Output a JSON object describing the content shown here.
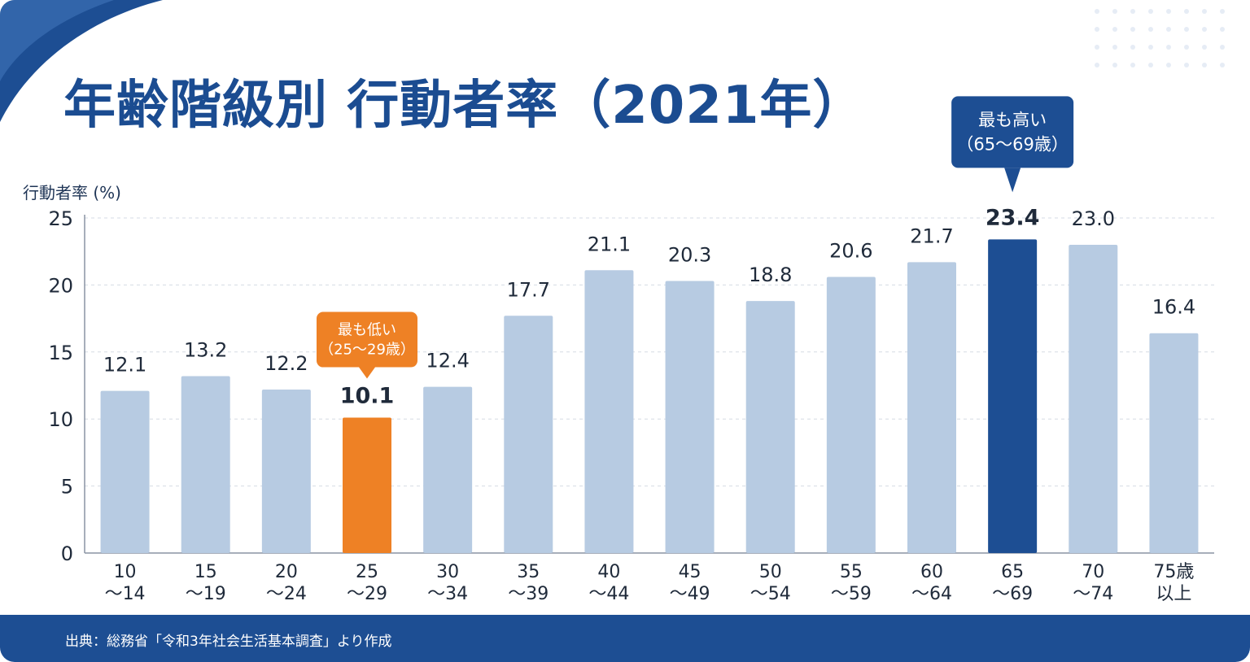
{
  "title": "年齢階級別 行動者率（2021年）",
  "source": "出典：総務省「令和3年社会生活基本調査」より作成",
  "colors": {
    "bar": "#b7cbe2",
    "lowest": "#ee8125",
    "highest": "#1d4e93",
    "title": "#1b4c91",
    "footer": "#1d4e93"
  },
  "chart_data": {
    "type": "bar",
    "ylabel": "行動者率 (%)",
    "ylim": [
      0,
      25
    ],
    "yticks": [
      "0",
      "5",
      "10",
      "15",
      "20",
      "25"
    ],
    "grid": true,
    "categories": [
      [
        "10",
        "～14"
      ],
      [
        "15",
        "～19"
      ],
      [
        "20",
        "～24"
      ],
      [
        "25",
        "～29"
      ],
      [
        "30",
        "～34"
      ],
      [
        "35",
        "～39"
      ],
      [
        "40",
        "～44"
      ],
      [
        "45",
        "～49"
      ],
      [
        "50",
        "～54"
      ],
      [
        "55",
        "～59"
      ],
      [
        "60",
        "～64"
      ],
      [
        "65",
        "～69"
      ],
      [
        "70",
        "～74"
      ],
      [
        "75歳",
        "以上"
      ]
    ],
    "values": [
      12.1,
      13.2,
      12.2,
      10.1,
      12.4,
      17.7,
      21.1,
      20.3,
      18.8,
      20.6,
      21.7,
      23.4,
      23.0,
      16.4
    ],
    "value_labels": [
      "12.1",
      "13.2",
      "12.2",
      "10.1",
      "12.4",
      "17.7",
      "21.1",
      "20.3",
      "18.8",
      "20.6",
      "21.7",
      "23.4",
      "23.0",
      "16.4"
    ],
    "annotations": [
      {
        "index": 3,
        "kind": "lowest",
        "lines": [
          "最も低い",
          "（25～29歳）"
        ]
      },
      {
        "index": 11,
        "kind": "highest",
        "lines": [
          "最も高い",
          "（65～69歳）"
        ]
      }
    ]
  }
}
